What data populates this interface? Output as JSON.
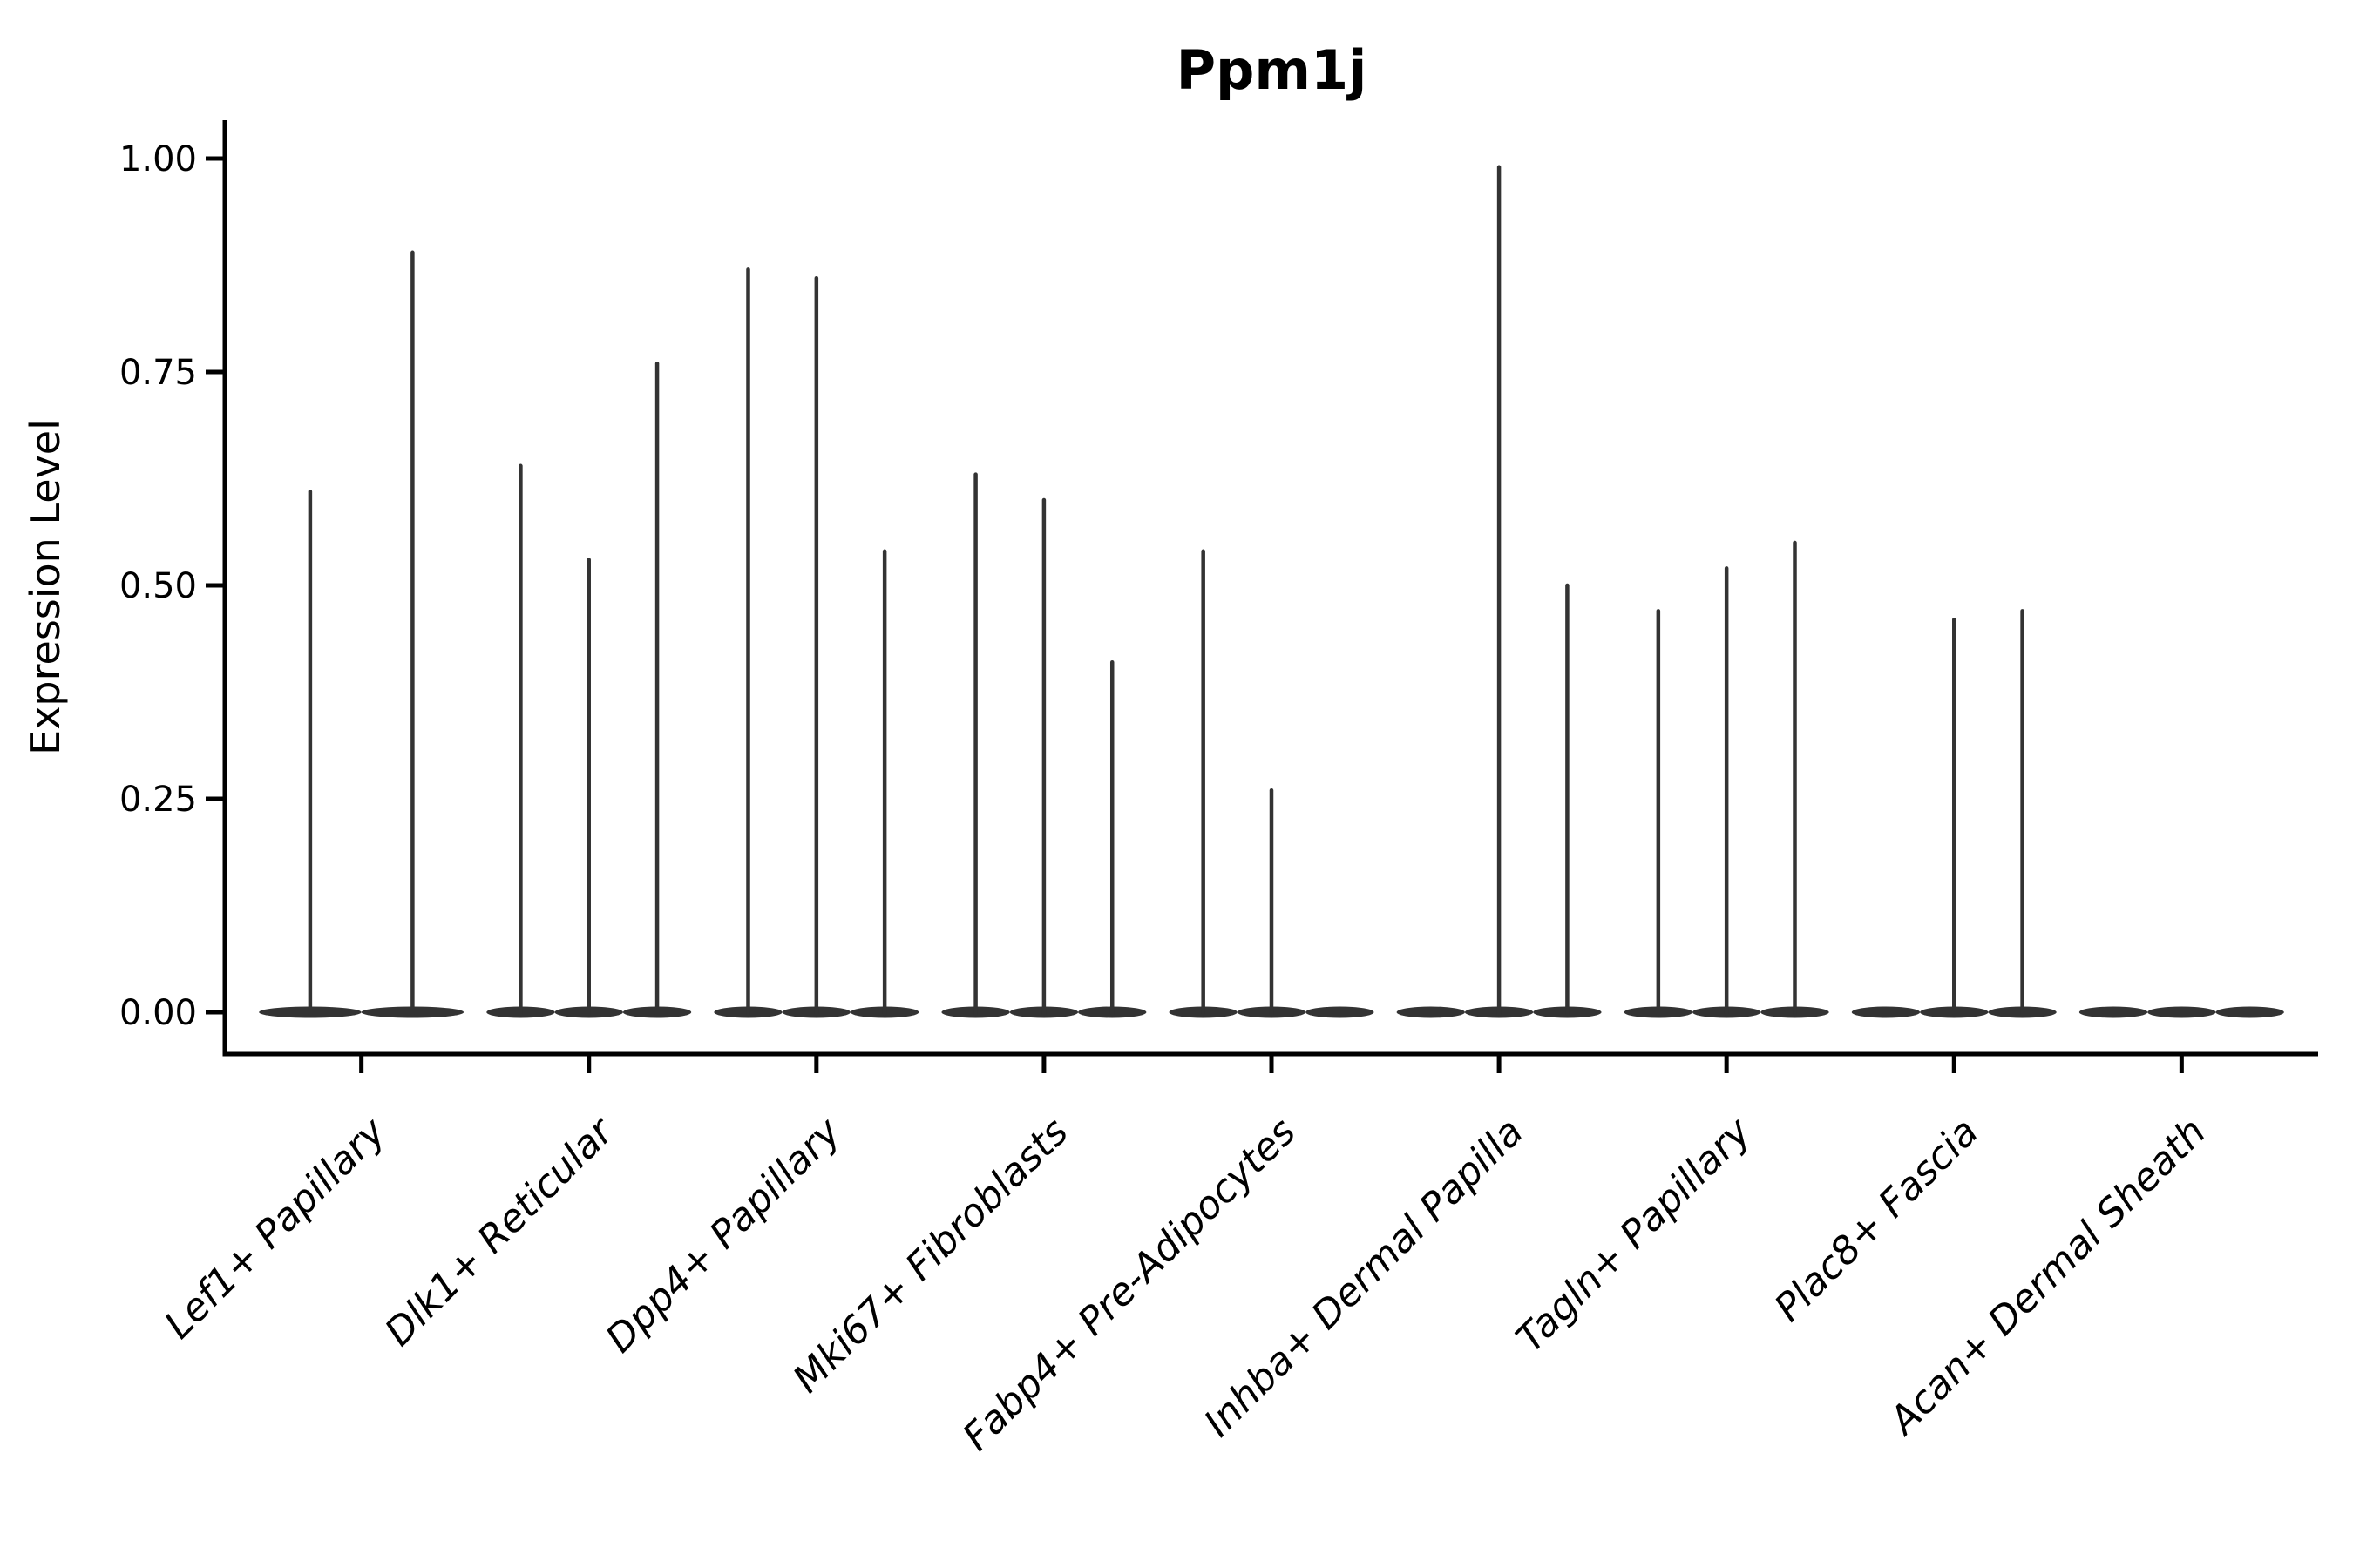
{
  "figure": {
    "title": "Ppm1j",
    "ylabel": "Expression Level"
  },
  "chart_data": {
    "type": "violin",
    "title": "Ppm1j",
    "xlabel": "",
    "ylabel": "Expression Level",
    "ylim": [
      0,
      1.0
    ],
    "y_ticks": [
      0,
      0.25,
      0.5,
      0.75,
      1.0
    ],
    "y_tick_labels": [
      "0.00",
      "0.25",
      "0.50",
      "0.75",
      "1.00"
    ],
    "categories": [
      "Lef1+ Papillary",
      "Dlk1+ Reticular",
      "Dpp4+ Papillary",
      "Mki67+ Fibroblasts",
      "Fabp4+ Pre-Adipocytes",
      "Inhba+ Dermal Papilla",
      "Tagln+ Papillary",
      "Plac8+ Fascia",
      "Acan+ Dermal Sheath"
    ],
    "groups": [
      {
        "category": "Lef1+ Papillary",
        "violin_maxima": [
          0.61,
          0.89
        ]
      },
      {
        "category": "Dlk1+ Reticular",
        "violin_maxima": [
          0.64,
          0.53,
          0.76
        ]
      },
      {
        "category": "Dpp4+ Papillary",
        "violin_maxima": [
          0.87,
          0.86,
          0.54
        ]
      },
      {
        "category": "Mki67+ Fibroblasts",
        "violin_maxima": [
          0.63,
          0.6,
          0.41
        ]
      },
      {
        "category": "Fabp4+ Pre-Adipocytes",
        "violin_maxima": [
          0.54,
          0.26,
          0
        ]
      },
      {
        "category": "Inhba+ Dermal Papilla",
        "violin_maxima": [
          0,
          0.99,
          0.5
        ]
      },
      {
        "category": "Tagln+ Papillary",
        "violin_maxima": [
          0.47,
          0.52,
          0.55
        ]
      },
      {
        "category": "Plac8+ Fascia",
        "violin_maxima": [
          0,
          0.46,
          0.47
        ]
      },
      {
        "category": "Acan+ Dermal Sheath",
        "violin_maxima": [
          0,
          0,
          0
        ]
      }
    ],
    "description": "Violin plot of Ppm1j expression; density is concentrated at 0 in every population, producing flat bases with thin spikes up to each group's maximum expression value.",
    "legend": "none",
    "grid": false,
    "x_label_angle_deg": 45,
    "style": {
      "violin_color": "#333333",
      "axis_color": "#000000",
      "background": "#ffffff"
    }
  }
}
